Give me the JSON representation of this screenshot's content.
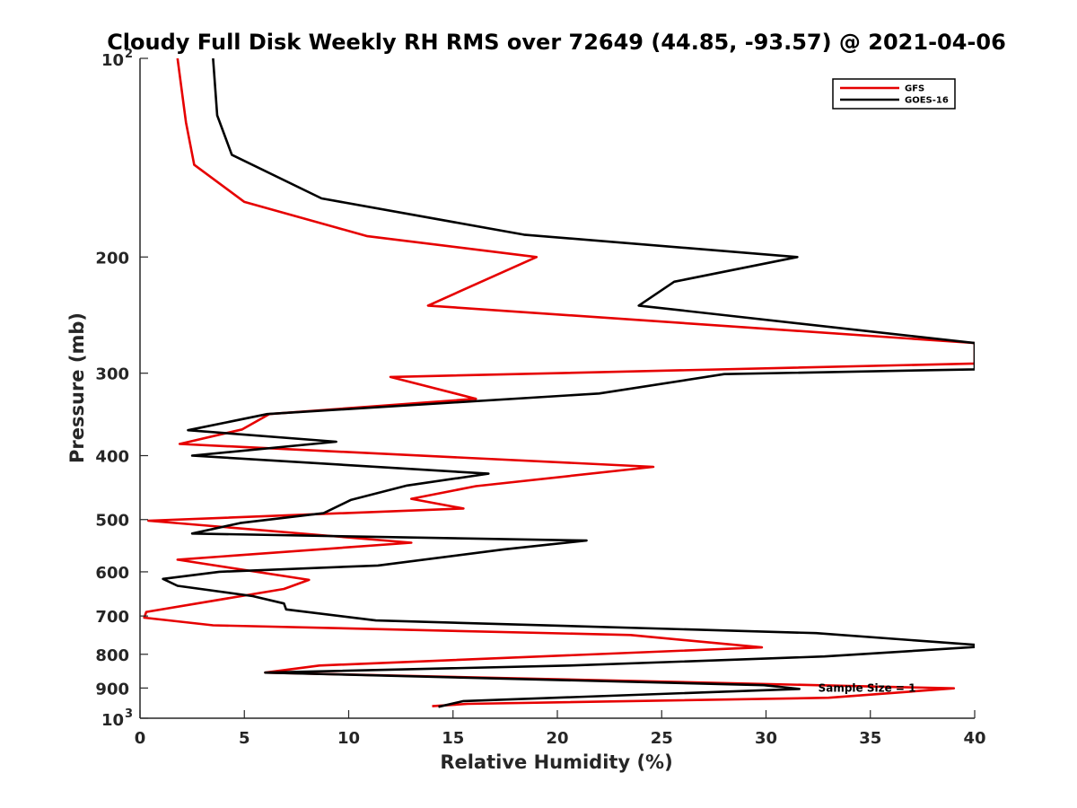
{
  "chart_data": {
    "type": "line",
    "title": "Cloudy Full Disk Weekly RH RMS over 72649 (44.85, -93.57) @ 2021-04-06",
    "xlabel": "Relative Humidity (%)",
    "ylabel": "Pressure (mb)",
    "xlim": [
      0,
      40
    ],
    "ylim": [
      100,
      1000
    ],
    "yscale": "log",
    "y_reversed": true,
    "grid": false,
    "legend_position": "top-right",
    "xticks": [
      0,
      5,
      10,
      15,
      20,
      25,
      30,
      35,
      40
    ],
    "xtick_labels": [
      "0",
      "5",
      "10",
      "15",
      "20",
      "25",
      "30",
      "35",
      "40"
    ],
    "yticks": [
      100,
      200,
      300,
      400,
      500,
      600,
      700,
      800,
      900,
      1000
    ],
    "ytick_labels": [
      {
        "base": "10",
        "exp": "2"
      },
      {
        "base": "200",
        "exp": ""
      },
      {
        "base": "300",
        "exp": ""
      },
      {
        "base": "400",
        "exp": ""
      },
      {
        "base": "500",
        "exp": ""
      },
      {
        "base": "600",
        "exp": ""
      },
      {
        "base": "700",
        "exp": ""
      },
      {
        "base": "800",
        "exp": ""
      },
      {
        "base": "900",
        "exp": ""
      },
      {
        "base": "10",
        "exp": "3"
      }
    ],
    "annotation": {
      "text": "Sample Size = 1",
      "x": 32.5,
      "y": 900
    },
    "series": [
      {
        "name": "GFS",
        "color": "#e60000",
        "points": [
          [
            1.8,
            100
          ],
          [
            2.2,
            125
          ],
          [
            2.6,
            145
          ],
          [
            5.0,
            165
          ],
          [
            10.9,
            186
          ],
          [
            19.0,
            200
          ],
          [
            13.8,
            237
          ],
          [
            40,
            270
          ],
          [
            40,
            290
          ],
          [
            12.0,
            304
          ],
          [
            16.1,
            328
          ],
          [
            6.2,
            346
          ],
          [
            4.9,
            365
          ],
          [
            1.9,
            384
          ],
          [
            24.6,
            416
          ],
          [
            16.1,
            445
          ],
          [
            13.0,
            465
          ],
          [
            15.5,
            481
          ],
          [
            0.4,
            502
          ],
          [
            13.0,
            542
          ],
          [
            1.8,
            575
          ],
          [
            8.1,
            617
          ],
          [
            6.9,
            637
          ],
          [
            0.3,
            690
          ],
          [
            0.2,
            704
          ],
          [
            3.5,
            723
          ],
          [
            23.5,
            748
          ],
          [
            29.8,
            781
          ],
          [
            8.6,
            832
          ],
          [
            6.0,
            853
          ],
          [
            39.0,
            901
          ],
          [
            33.0,
            931
          ],
          [
            15.7,
            951
          ],
          [
            14.0,
            959
          ]
        ]
      },
      {
        "name": "GOES-16",
        "color": "#000000",
        "points": [
          [
            3.5,
            100
          ],
          [
            3.7,
            122
          ],
          [
            4.4,
            140
          ],
          [
            8.7,
            163
          ],
          [
            18.4,
            185
          ],
          [
            31.5,
            200
          ],
          [
            25.6,
            218
          ],
          [
            23.9,
            237
          ],
          [
            40,
            270
          ],
          [
            40,
            296
          ],
          [
            28.0,
            301
          ],
          [
            22.0,
            322
          ],
          [
            6.1,
            346
          ],
          [
            2.3,
            366
          ],
          [
            9.4,
            381
          ],
          [
            2.5,
            400
          ],
          [
            16.7,
            426
          ],
          [
            12.8,
            444
          ],
          [
            10.1,
            467
          ],
          [
            8.8,
            489
          ],
          [
            4.8,
            506
          ],
          [
            2.5,
            525
          ],
          [
            21.4,
            538
          ],
          [
            17.4,
            555
          ],
          [
            11.4,
            587
          ],
          [
            3.8,
            600
          ],
          [
            1.1,
            615
          ],
          [
            1.8,
            630
          ],
          [
            5.4,
            653
          ],
          [
            6.9,
            670
          ],
          [
            7.0,
            684
          ],
          [
            11.3,
            711
          ],
          [
            32.4,
            743
          ],
          [
            40,
            774
          ],
          [
            40,
            780
          ],
          [
            32.8,
            806
          ],
          [
            20.6,
            832
          ],
          [
            6.0,
            853
          ],
          [
            29.9,
            891
          ],
          [
            31.6,
            903
          ],
          [
            15.5,
            942
          ],
          [
            14.3,
            961
          ]
        ]
      }
    ]
  },
  "legend": {
    "items": [
      {
        "label": "GFS",
        "color": "#e60000"
      },
      {
        "label": "GOES-16",
        "color": "#000000"
      }
    ]
  }
}
